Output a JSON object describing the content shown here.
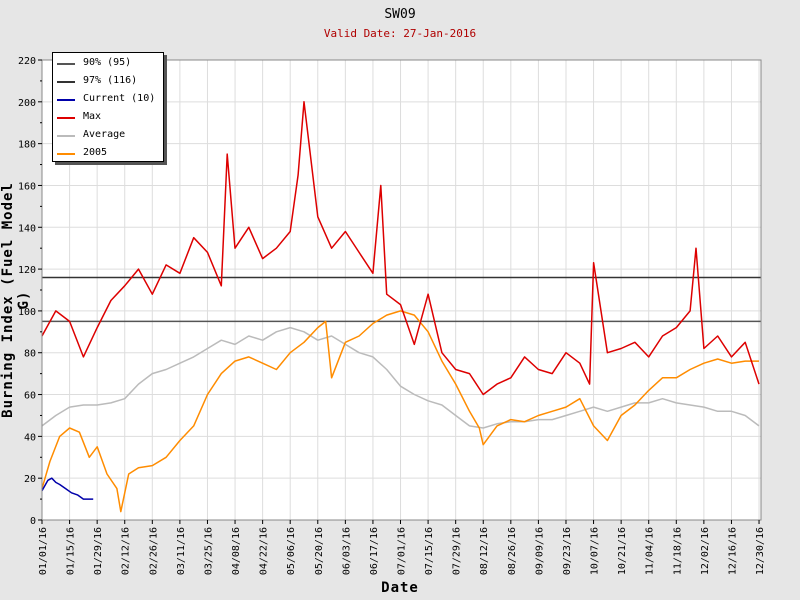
{
  "chart_data": {
    "type": "line",
    "title": "SW09",
    "subtitle": "Valid Date: 27-Jan-2016",
    "xlabel": "Date",
    "ylabel": "Burning Index (Fuel Model G)",
    "ylim": [
      0,
      220
    ],
    "yticks": [
      0,
      20,
      40,
      60,
      80,
      100,
      120,
      140,
      160,
      180,
      200,
      220
    ],
    "xlim": [
      "01/01/16",
      "12/31/16"
    ],
    "xticks": [
      "01/01/16",
      "01/15/16",
      "01/29/16",
      "02/12/16",
      "02/26/16",
      "03/11/16",
      "03/25/16",
      "04/08/16",
      "04/22/16",
      "05/06/16",
      "05/20/16",
      "06/03/16",
      "06/17/16",
      "07/01/16",
      "07/15/16",
      "07/29/16",
      "08/12/16",
      "08/26/16",
      "09/09/16",
      "09/23/16",
      "10/07/16",
      "10/21/16",
      "11/04/16",
      "11/18/16",
      "12/02/16",
      "12/16/16",
      "12/30/16"
    ],
    "grid": true,
    "legend_position": "top-left",
    "series": [
      {
        "name": "90% (95)",
        "color": "#555555",
        "kind": "hline",
        "value": 95
      },
      {
        "name": "97% (116)",
        "color": "#333333",
        "kind": "hline",
        "value": 116
      },
      {
        "name": "Current (10)",
        "color": "#0000aa",
        "kind": "line",
        "x": [
          "01/01/16",
          "01/04/16",
          "01/06/16",
          "01/08/16",
          "01/10/16",
          "01/13/16",
          "01/16/16",
          "01/19/16",
          "01/22/16",
          "01/25/16",
          "01/27/16"
        ],
        "y": [
          14,
          19,
          20,
          18,
          17,
          15,
          13,
          12,
          10,
          10,
          10
        ]
      },
      {
        "name": "Max",
        "color": "#dd0000",
        "kind": "line",
        "x": [
          "01/01/16",
          "01/08/16",
          "01/15/16",
          "01/22/16",
          "01/29/16",
          "02/05/16",
          "02/12/16",
          "02/19/16",
          "02/26/16",
          "03/04/16",
          "03/11/16",
          "03/18/16",
          "03/25/16",
          "04/01/16",
          "04/04/16",
          "04/08/16",
          "04/15/16",
          "04/22/16",
          "04/29/16",
          "05/06/16",
          "05/10/16",
          "05/13/16",
          "05/20/16",
          "05/27/16",
          "06/03/16",
          "06/10/16",
          "06/17/16",
          "06/21/16",
          "06/24/16",
          "07/01/16",
          "07/08/16",
          "07/15/16",
          "07/22/16",
          "07/29/16",
          "08/05/16",
          "08/12/16",
          "08/19/16",
          "08/26/16",
          "09/02/16",
          "09/09/16",
          "09/16/16",
          "09/23/16",
          "09/30/16",
          "10/05/16",
          "10/07/16",
          "10/14/16",
          "10/21/16",
          "10/28/16",
          "11/04/16",
          "11/11/16",
          "11/18/16",
          "11/25/16",
          "11/28/16",
          "12/02/16",
          "12/09/16",
          "12/16/16",
          "12/23/16",
          "12/30/16"
        ],
        "y": [
          88,
          100,
          95,
          78,
          92,
          105,
          112,
          120,
          108,
          122,
          118,
          135,
          128,
          112,
          175,
          130,
          140,
          125,
          130,
          138,
          165,
          200,
          145,
          130,
          138,
          128,
          118,
          160,
          108,
          103,
          84,
          108,
          80,
          72,
          70,
          60,
          65,
          68,
          78,
          72,
          70,
          80,
          75,
          65,
          123,
          80,
          82,
          85,
          78,
          88,
          92,
          100,
          130,
          82,
          88,
          78,
          85,
          65
        ]
      },
      {
        "name": "Average",
        "color": "#bbbbbb",
        "kind": "line",
        "x": [
          "01/01/16",
          "01/08/16",
          "01/15/16",
          "01/22/16",
          "01/29/16",
          "02/05/16",
          "02/12/16",
          "02/19/16",
          "02/26/16",
          "03/04/16",
          "03/11/16",
          "03/18/16",
          "03/25/16",
          "04/01/16",
          "04/08/16",
          "04/15/16",
          "04/22/16",
          "04/29/16",
          "05/06/16",
          "05/13/16",
          "05/20/16",
          "05/27/16",
          "06/03/16",
          "06/10/16",
          "06/17/16",
          "06/24/16",
          "07/01/16",
          "07/08/16",
          "07/15/16",
          "07/22/16",
          "07/29/16",
          "08/05/16",
          "08/12/16",
          "08/19/16",
          "08/26/16",
          "09/02/16",
          "09/09/16",
          "09/16/16",
          "09/23/16",
          "09/30/16",
          "10/07/16",
          "10/14/16",
          "10/21/16",
          "10/28/16",
          "11/04/16",
          "11/11/16",
          "11/18/16",
          "11/25/16",
          "12/02/16",
          "12/09/16",
          "12/16/16",
          "12/23/16",
          "12/30/16"
        ],
        "y": [
          45,
          50,
          54,
          55,
          55,
          56,
          58,
          65,
          70,
          72,
          75,
          78,
          82,
          86,
          84,
          88,
          86,
          90,
          92,
          90,
          86,
          88,
          84,
          80,
          78,
          72,
          64,
          60,
          57,
          55,
          50,
          45,
          44,
          46,
          47,
          47,
          48,
          48,
          50,
          52,
          54,
          52,
          54,
          56,
          56,
          58,
          56,
          55,
          54,
          52,
          52,
          50,
          45
        ]
      },
      {
        "name": "2005",
        "color": "#ff8c00",
        "kind": "line",
        "x": [
          "01/01/16",
          "01/05/16",
          "01/10/16",
          "01/15/16",
          "01/20/16",
          "01/25/16",
          "01/29/16",
          "02/03/16",
          "02/08/16",
          "02/10/16",
          "02/14/16",
          "02/19/16",
          "02/26/16",
          "03/04/16",
          "03/11/16",
          "03/18/16",
          "03/25/16",
          "04/01/16",
          "04/08/16",
          "04/15/16",
          "04/22/16",
          "04/29/16",
          "05/06/16",
          "05/13/16",
          "05/20/16",
          "05/24/16",
          "05/27/16",
          "06/03/16",
          "06/10/16",
          "06/17/16",
          "06/24/16",
          "07/01/16",
          "07/08/16",
          "07/15/16",
          "07/22/16",
          "07/29/16",
          "08/05/16",
          "08/10/16",
          "08/12/16",
          "08/19/16",
          "08/26/16",
          "09/02/16",
          "09/09/16",
          "09/16/16",
          "09/23/16",
          "09/30/16",
          "10/07/16",
          "10/14/16",
          "10/21/16",
          "10/28/16",
          "11/04/16",
          "11/11/16",
          "11/18/16",
          "11/25/16",
          "12/02/16",
          "12/09/16",
          "12/16/16",
          "12/23/16",
          "12/30/16"
        ],
        "y": [
          15,
          28,
          40,
          44,
          42,
          30,
          35,
          22,
          15,
          4,
          22,
          25,
          26,
          30,
          38,
          45,
          60,
          70,
          76,
          78,
          75,
          72,
          80,
          85,
          92,
          95,
          68,
          85,
          88,
          94,
          98,
          100,
          98,
          90,
          76,
          65,
          52,
          44,
          36,
          45,
          48,
          47,
          50,
          52,
          54,
          58,
          45,
          38,
          50,
          55,
          62,
          68,
          68,
          72,
          75,
          77,
          75,
          76,
          76
        ]
      }
    ]
  }
}
